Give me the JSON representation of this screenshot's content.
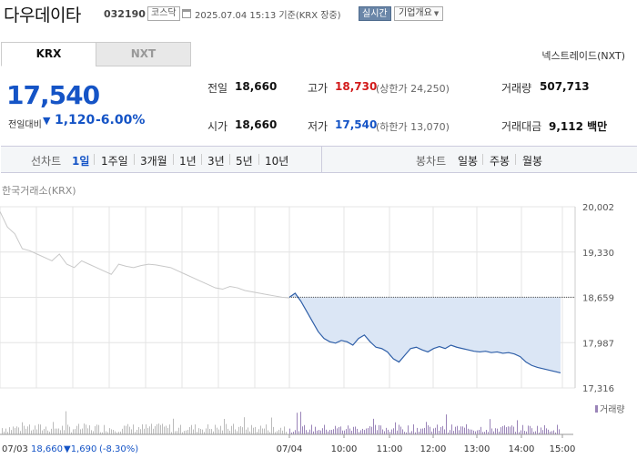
{
  "header": {
    "name": "다우데이타",
    "code": "032190",
    "market": "코스닥",
    "datetime": "2025.07.04 15:13 기준(KRX 장중)",
    "realtime": "실시간",
    "overview": "기업개요"
  },
  "tabs": [
    {
      "label": "KRX"
    },
    {
      "label": "NXT"
    }
  ],
  "nxt_link": "넥스트레이드(NXT)",
  "quote": {
    "price": "17,540",
    "change_label": "전일대비",
    "change_value": "1,120",
    "change_pct": "-6.00%"
  },
  "stats": {
    "prev_label": "전일",
    "prev_value": "18,660",
    "high_label": "고가",
    "high_value": "18,730",
    "high_sub": "(상한가 24,250)",
    "volume_label": "거래량",
    "volume_value": "507,713",
    "open_label": "시가",
    "open_value": "18,660",
    "low_label": "저가",
    "low_value": "17,540",
    "low_sub": "(하한가 13,070)",
    "amount_label": "거래대금",
    "amount_value": "9,112 백만"
  },
  "line_chart": {
    "label": "선차트",
    "periods": [
      "1일",
      "1주일",
      "3개월",
      "1년",
      "3년",
      "5년",
      "10년"
    ],
    "active": "1일"
  },
  "candle_chart": {
    "label": "봉차트",
    "periods": [
      "일봉",
      "주봉",
      "월봉"
    ]
  },
  "chart": {
    "title": "한국거래소(KRX)",
    "volume_label": "거래량",
    "footer_date": "07/03",
    "footer_price": "18,660",
    "footer_change": "▼1,690",
    "footer_pct": "(-8.30%)",
    "colors": {
      "prev_day": "#c8c8c8",
      "today": "#2f5fa8",
      "fill": "#dbe6f5",
      "volume_prev": "#bbbbbb",
      "volume_today": "#9a84b8"
    }
  },
  "chart_data": {
    "type": "line",
    "ylim": [
      17316,
      20002
    ],
    "yticks": [
      "20,002",
      "19,330",
      "18,659",
      "17,987",
      "17,316"
    ],
    "xticks": [
      "07/04",
      "10:00",
      "11:00",
      "12:00",
      "13:00",
      "14:00",
      "15:00"
    ],
    "reference": 18660,
    "series": [
      {
        "day": "07/03",
        "values": [
          19930,
          19700,
          19600,
          19380,
          19350,
          19300,
          19250,
          19200,
          19300,
          19150,
          19100,
          19200,
          19150,
          19100,
          19050,
          19000,
          19150,
          19120,
          19100,
          19130,
          19150,
          19140,
          19120,
          19100,
          19050,
          19000,
          18950,
          18900,
          18850,
          18800,
          18780,
          18820,
          18800,
          18760,
          18740,
          18720,
          18700,
          18680,
          18660,
          18650
        ]
      },
      {
        "day": "07/04",
        "values": [
          18660,
          18720,
          18600,
          18450,
          18300,
          18150,
          18050,
          18000,
          17980,
          18020,
          18000,
          17950,
          18050,
          18100,
          18000,
          17920,
          17900,
          17850,
          17750,
          17700,
          17800,
          17900,
          17920,
          17880,
          17850,
          17900,
          17930,
          17900,
          17950,
          17920,
          17900,
          17880,
          17860,
          17850,
          17860,
          17840,
          17850,
          17830,
          17840,
          17820,
          17780,
          17700,
          17650,
          17620,
          17600,
          17580,
          17560,
          17540
        ]
      }
    ]
  }
}
